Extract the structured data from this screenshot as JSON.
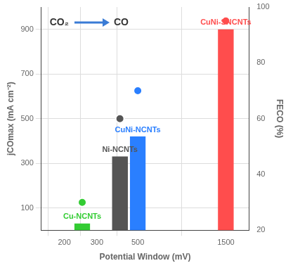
{
  "chart_data": {
    "type": "bar",
    "annotations": [
      "CO₂",
      "CO"
    ],
    "xlabel": "Potential Window (mV)",
    "ylabel": "jCOmax (mA cm⁻²)",
    "y2label": "FECO (%)",
    "log": "x",
    "xlim": [
      150,
      2000
    ],
    "xticks": [
      200,
      300,
      500,
      1500
    ],
    "ylim": [
      0,
      1000
    ],
    "yticks": [
      100,
      300,
      500,
      700,
      900
    ],
    "y2lim": [
      20,
      100
    ],
    "y2ticks": [
      20,
      40,
      60,
      80,
      100
    ],
    "grid": true,
    "marker": "circle",
    "series": [
      {
        "name": "Cu-NCNTs",
        "color": "#33cc33",
        "x": [
          250
        ],
        "values": [
          30
        ],
        "fe": [
          30
        ]
      },
      {
        "name": "Ni-NCNTs",
        "color": "#555555",
        "x": [
          400
        ],
        "values": [
          330
        ],
        "fe": [
          60
        ]
      },
      {
        "name": "CuNi-NCNTs",
        "color": "#2a7fff",
        "x": [
          500
        ],
        "values": [
          420
        ],
        "fe": [
          70
        ]
      },
      {
        "name": "CuNi-SNCNTs",
        "color": "#ff4d4d",
        "x": [
          1500
        ],
        "values": [
          900
        ],
        "fe": [
          95
        ]
      }
    ]
  }
}
